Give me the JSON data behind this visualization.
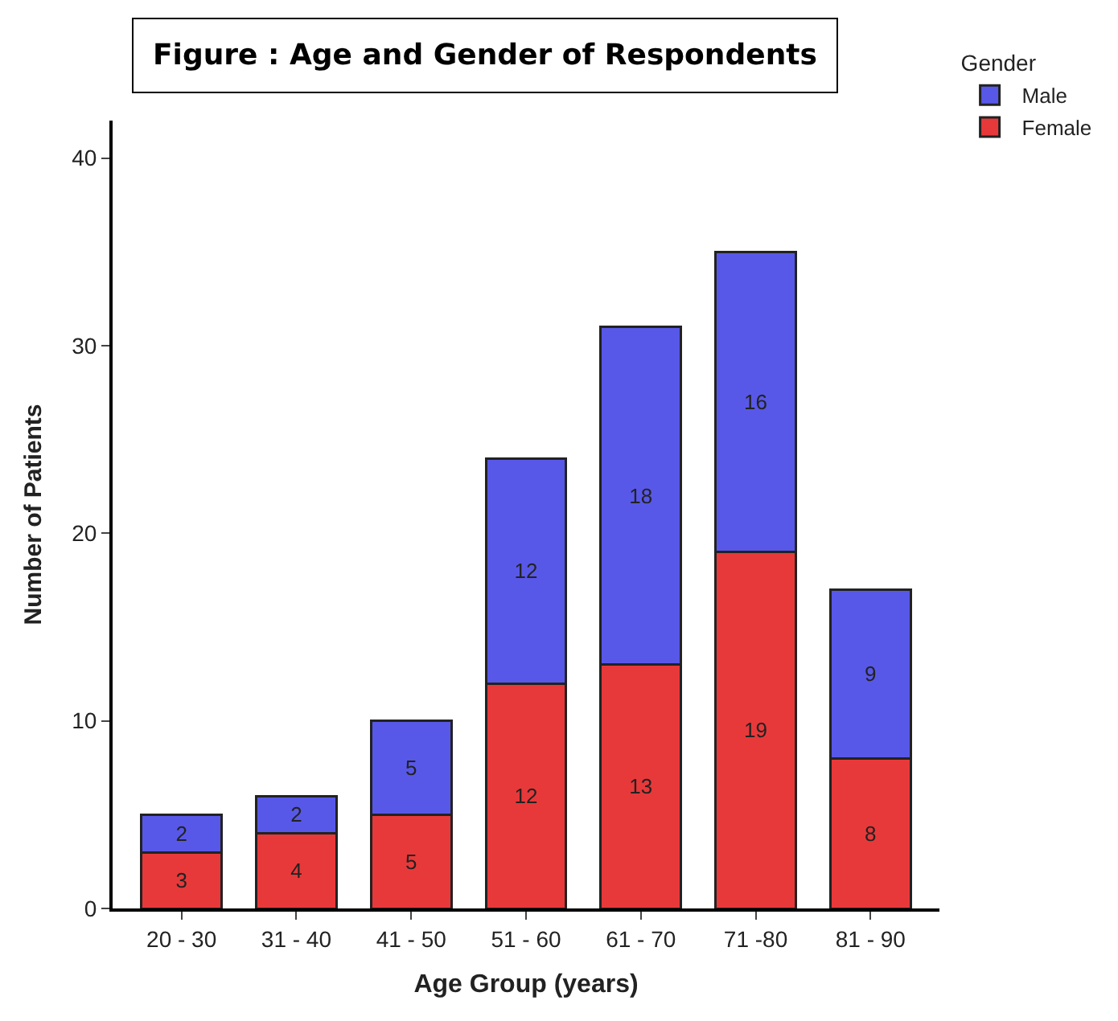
{
  "chart_data": {
    "type": "bar",
    "title": "Figure : Age and Gender of Respondents",
    "xlabel": "Age Group (years)",
    "ylabel": "Number of Patients",
    "legend_title": "Gender",
    "categories": [
      "20 - 30",
      "31 - 40",
      "41 - 50",
      "51 - 60",
      "61 - 70",
      "71 -80",
      "81 - 90"
    ],
    "series": [
      {
        "name": "Female",
        "color": "#e8393a",
        "values": [
          3,
          4,
          5,
          12,
          13,
          19,
          8
        ]
      },
      {
        "name": "Male",
        "color": "#5858e8",
        "values": [
          2,
          2,
          5,
          12,
          18,
          16,
          9
        ]
      }
    ],
    "stacked": true,
    "ylim": [
      0,
      42
    ],
    "yticks": [
      0,
      10,
      20,
      30,
      40
    ],
    "legend": "top right",
    "data_labels": true
  }
}
